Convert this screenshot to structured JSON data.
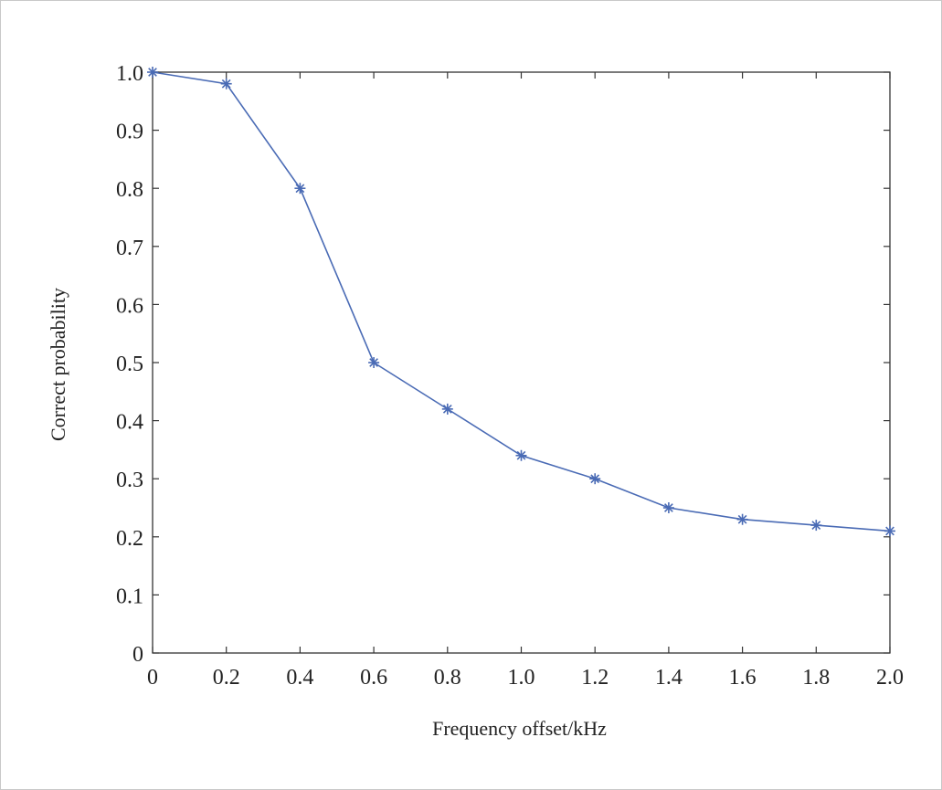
{
  "chart_data": {
    "type": "line",
    "xlabel": "Frequency offset/kHz",
    "ylabel": "Correct probability",
    "xlim": [
      0,
      2.0
    ],
    "ylim": [
      0,
      1.0
    ],
    "x_ticks": [
      "0",
      "0.2",
      "0.4",
      "0.6",
      "0.8",
      "1.0",
      "1.2",
      "1.4",
      "1.6",
      "1.8",
      "2.0"
    ],
    "y_ticks": [
      "0",
      "0.1",
      "0.2",
      "0.3",
      "0.4",
      "0.5",
      "0.6",
      "0.7",
      "0.8",
      "0.9",
      "1.0"
    ],
    "grid": false,
    "marker": "asterisk",
    "line_color": "#4a6bb5",
    "series": [
      {
        "x": [
          0,
          0.2,
          0.4,
          0.6,
          0.8,
          1.0,
          1.2,
          1.4,
          1.6,
          1.8,
          2.0
        ],
        "y": [
          1.0,
          0.98,
          0.8,
          0.5,
          0.42,
          0.34,
          0.3,
          0.25,
          0.23,
          0.22,
          0.21
        ]
      }
    ]
  }
}
